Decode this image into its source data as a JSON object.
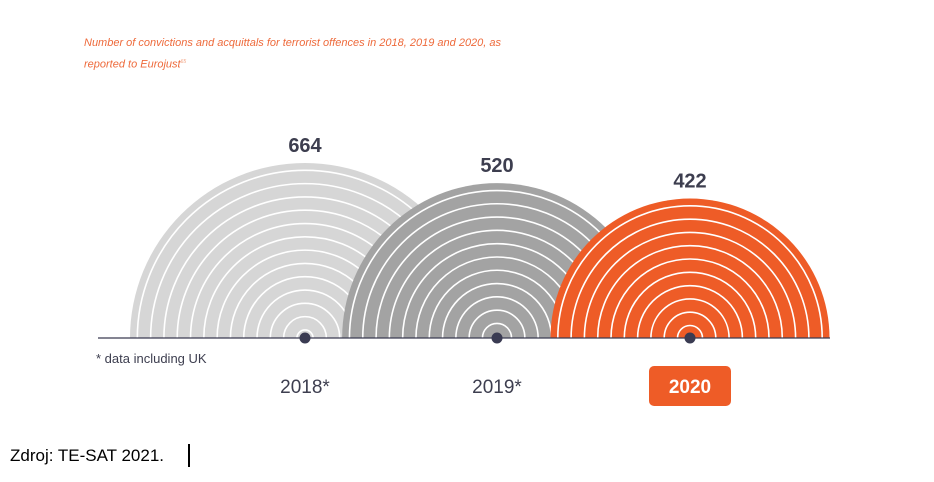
{
  "chart_data": {
    "type": "bar",
    "title": "Number of convictions and acquittals for terrorist offences in 2018, 2019 and 2020, as reported to Eurojust",
    "title_footnote": "65",
    "categories": [
      "2018*",
      "2019*",
      "2020"
    ],
    "values": [
      664,
      520,
      422
    ],
    "value_labels": [
      "664",
      "520",
      "422"
    ],
    "highlight_category": "2020",
    "footnote": "* data including UK",
    "colors": {
      "2018*": "#d6d6d6",
      "2019*": "#a3a3a3",
      "2020": "#ee5c27",
      "value_text": "#3d3e4f",
      "axis": "#3a3b52",
      "highlight_text": "#ffffff",
      "title": "#ee6a3b"
    }
  },
  "source": "Zdroj: TE-SAT 2021."
}
